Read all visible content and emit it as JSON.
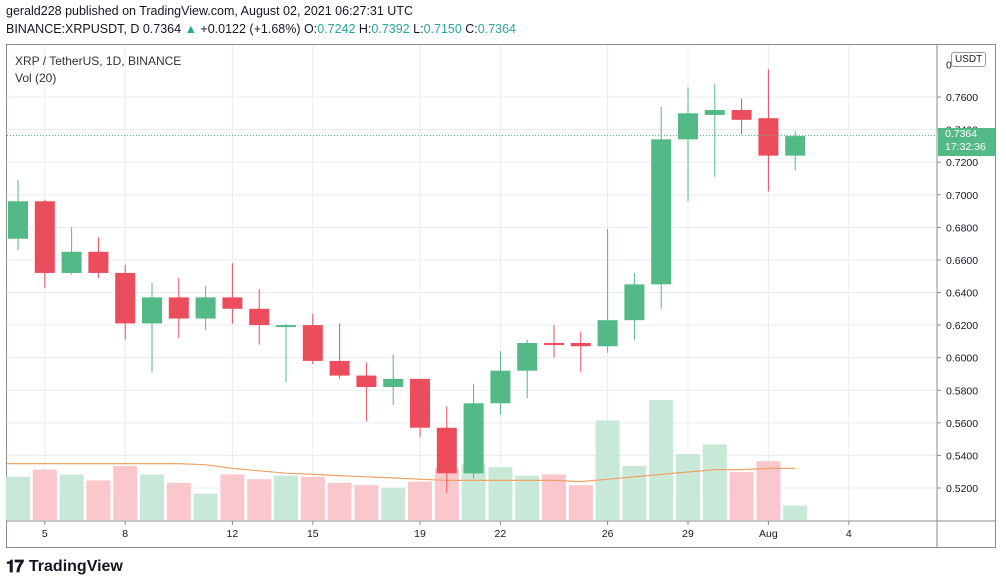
{
  "header": {
    "line1": "gerald228 published on TradingView.com, August 02, 2021 06:27:31 UTC",
    "symbol_line": "BINANCE:XRPUSDT, D",
    "last": "0.7364",
    "change": "+0.0122 (+1.68%)",
    "o_label": "O:",
    "o": "0.7242",
    "h_label": "H:",
    "h": "0.7392",
    "l_label": "L:",
    "l": "0.7150",
    "c_label": "C:",
    "c": "0.7364"
  },
  "legend": {
    "title": "XRP / TetherUS, 1D, BINANCE",
    "volume": "Vol (20)"
  },
  "price_axis": {
    "unit_badge": "USDT",
    "ticks": [
      "0.5200",
      "0.5400",
      "0.5600",
      "0.5800",
      "0.6000",
      "0.6200",
      "0.6400",
      "0.6600",
      "0.6800",
      "0.7000",
      "0.7200",
      "0.7400",
      "0.7600"
    ],
    "top_partial": "0",
    "last_price": "0.7364",
    "countdown": "17:32:36"
  },
  "time_axis": {
    "labels": [
      {
        "text": "5",
        "bar": 1
      },
      {
        "text": "8",
        "bar": 4
      },
      {
        "text": "12",
        "bar": 8
      },
      {
        "text": "15",
        "bar": 11
      },
      {
        "text": "19",
        "bar": 15
      },
      {
        "text": "22",
        "bar": 18
      },
      {
        "text": "26",
        "bar": 22
      },
      {
        "text": "29",
        "bar": 25
      },
      {
        "text": "Aug",
        "bar": 28
      },
      {
        "text": "4",
        "bar": 31
      }
    ]
  },
  "colors": {
    "up": "#53b987",
    "down": "#eb4d5c",
    "vol_up": "#c8e8d8",
    "vol_down": "#f9c7cc",
    "ma": "#f0a168",
    "grid": "#e9ecf1"
  },
  "chart_data": {
    "type": "candlestick",
    "price_range": [
      0.505,
      0.778
    ],
    "candles": [
      {
        "o": 0.673,
        "h": 0.709,
        "l": 0.666,
        "c": 0.696
      },
      {
        "o": 0.696,
        "h": 0.697,
        "l": 0.643,
        "c": 0.652
      },
      {
        "o": 0.652,
        "h": 0.68,
        "l": 0.651,
        "c": 0.665
      },
      {
        "o": 0.665,
        "h": 0.674,
        "l": 0.649,
        "c": 0.652
      },
      {
        "o": 0.652,
        "h": 0.657,
        "l": 0.611,
        "c": 0.621
      },
      {
        "o": 0.621,
        "h": 0.646,
        "l": 0.591,
        "c": 0.637
      },
      {
        "o": 0.637,
        "h": 0.649,
        "l": 0.612,
        "c": 0.624
      },
      {
        "o": 0.624,
        "h": 0.644,
        "l": 0.617,
        "c": 0.637
      },
      {
        "o": 0.637,
        "h": 0.658,
        "l": 0.621,
        "c": 0.63
      },
      {
        "o": 0.63,
        "h": 0.642,
        "l": 0.608,
        "c": 0.62
      },
      {
        "o": 0.62,
        "h": 0.621,
        "l": 0.585,
        "c": 0.62
      },
      {
        "o": 0.62,
        "h": 0.627,
        "l": 0.596,
        "c": 0.598
      },
      {
        "o": 0.598,
        "h": 0.621,
        "l": 0.587,
        "c": 0.589
      },
      {
        "o": 0.589,
        "h": 0.597,
        "l": 0.561,
        "c": 0.582
      },
      {
        "o": 0.582,
        "h": 0.602,
        "l": 0.571,
        "c": 0.587
      },
      {
        "o": 0.587,
        "h": 0.587,
        "l": 0.551,
        "c": 0.557
      },
      {
        "o": 0.557,
        "h": 0.57,
        "l": 0.517,
        "c": 0.529
      },
      {
        "o": 0.529,
        "h": 0.584,
        "l": 0.526,
        "c": 0.572
      },
      {
        "o": 0.572,
        "h": 0.604,
        "l": 0.565,
        "c": 0.592
      },
      {
        "o": 0.592,
        "h": 0.611,
        "l": 0.575,
        "c": 0.609
      },
      {
        "o": 0.609,
        "h": 0.62,
        "l": 0.6,
        "c": 0.608
      },
      {
        "o": 0.609,
        "h": 0.616,
        "l": 0.591,
        "c": 0.607
      },
      {
        "o": 0.607,
        "h": 0.679,
        "l": 0.603,
        "c": 0.623
      },
      {
        "o": 0.623,
        "h": 0.652,
        "l": 0.611,
        "c": 0.645
      },
      {
        "o": 0.645,
        "h": 0.754,
        "l": 0.63,
        "c": 0.734
      },
      {
        "o": 0.734,
        "h": 0.766,
        "l": 0.696,
        "c": 0.75
      },
      {
        "o": 0.749,
        "h": 0.768,
        "l": 0.711,
        "c": 0.752
      },
      {
        "o": 0.752,
        "h": 0.759,
        "l": 0.737,
        "c": 0.746
      },
      {
        "o": 0.747,
        "h": 0.777,
        "l": 0.702,
        "c": 0.724
      },
      {
        "o": 0.724,
        "h": 0.739,
        "l": 0.715,
        "c": 0.736
      }
    ],
    "volume": [
      0.36,
      0.42,
      0.38,
      0.33,
      0.45,
      0.38,
      0.31,
      0.22,
      0.38,
      0.34,
      0.37,
      0.36,
      0.31,
      0.29,
      0.27,
      0.32,
      0.43,
      0.47,
      0.44,
      0.37,
      0.38,
      0.29,
      0.83,
      0.45,
      1.0,
      0.55,
      0.63,
      0.4,
      0.49,
      0.12
    ],
    "ma_vol": [
      0.47,
      0.47,
      0.47,
      0.47,
      0.47,
      0.47,
      0.47,
      0.46,
      0.43,
      0.41,
      0.39,
      0.38,
      0.37,
      0.36,
      0.35,
      0.34,
      0.33,
      0.33,
      0.33,
      0.33,
      0.33,
      0.32,
      0.34,
      0.36,
      0.38,
      0.4,
      0.42,
      0.42,
      0.43,
      0.43
    ]
  }
}
